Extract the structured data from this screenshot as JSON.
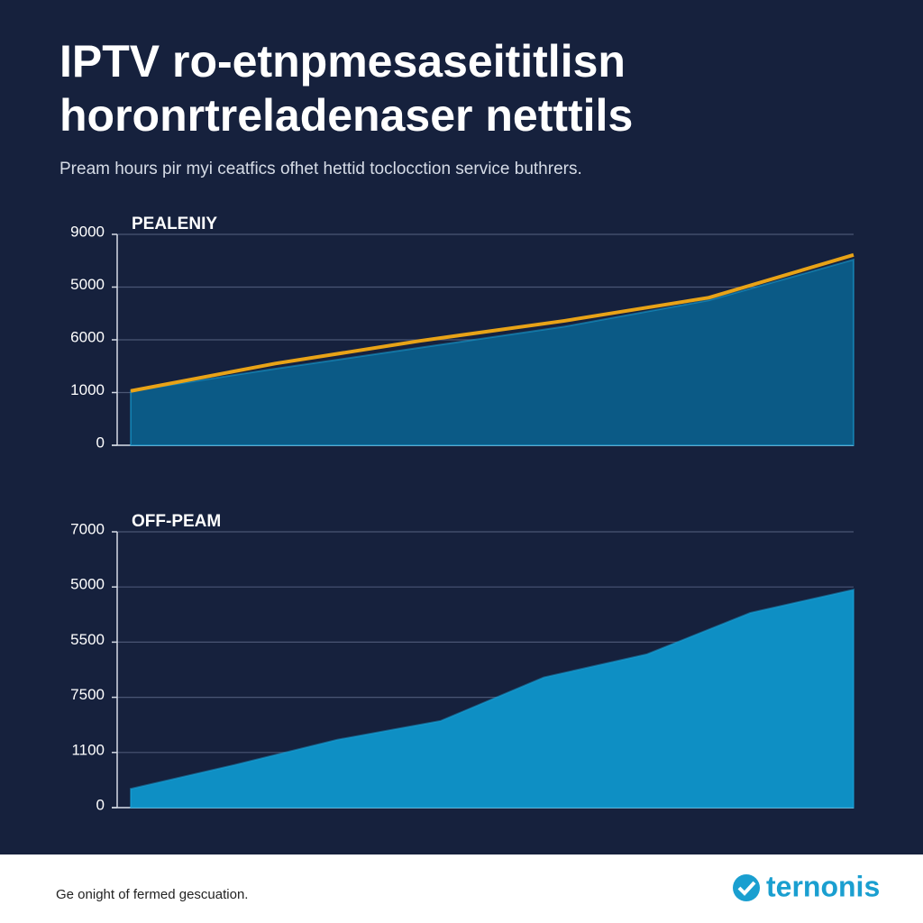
{
  "title": [
    "IPTV ro-etnpmesaseititlisn",
    "horonrtreladenaser netttils"
  ],
  "subtitle": "Pream hours pir myi ceatfics ofhet hettid toclocction service buthrers.",
  "footer": {
    "text": "Ge onight of fermed gescuation.",
    "logo": "ternonis"
  },
  "chart_data": [
    {
      "type": "area",
      "title": "PEALENIY",
      "categories": [
        null,
        null,
        null,
        null,
        null,
        null
      ],
      "ylim": [
        0,
        4
      ],
      "yticks": [
        {
          "value": 0,
          "label": "0"
        },
        {
          "value": 1,
          "label": "1000"
        },
        {
          "value": 2,
          "label": "6000"
        },
        {
          "value": 3,
          "label": "5000"
        },
        {
          "value": 4,
          "label": "9000"
        }
      ],
      "grid": true,
      "series": [
        {
          "kind": "area",
          "color": "#0b5a86",
          "values": [
            1.03,
            1.45,
            1.85,
            2.25,
            2.75,
            3.52
          ]
        },
        {
          "kind": "line",
          "color": "#e8a317",
          "values": [
            1.03,
            1.55,
            1.98,
            2.36,
            2.8,
            3.61
          ]
        }
      ]
    },
    {
      "type": "area",
      "title": "OFF-PEAM",
      "categories": [
        null,
        null,
        null,
        null,
        null,
        null,
        null,
        null
      ],
      "ylim": [
        0,
        5
      ],
      "yticks": [
        {
          "value": 0,
          "label": "0"
        },
        {
          "value": 1,
          "label": "1100"
        },
        {
          "value": 2,
          "label": "7500"
        },
        {
          "value": 3,
          "label": "5500"
        },
        {
          "value": 4,
          "label": "5000"
        },
        {
          "value": 5,
          "label": "7000"
        }
      ],
      "grid": true,
      "series": [
        {
          "kind": "area",
          "color": "#0e8fc4",
          "values": [
            0.34,
            0.77,
            1.23,
            1.57,
            2.36,
            2.78,
            3.53,
            3.95
          ]
        }
      ]
    }
  ]
}
